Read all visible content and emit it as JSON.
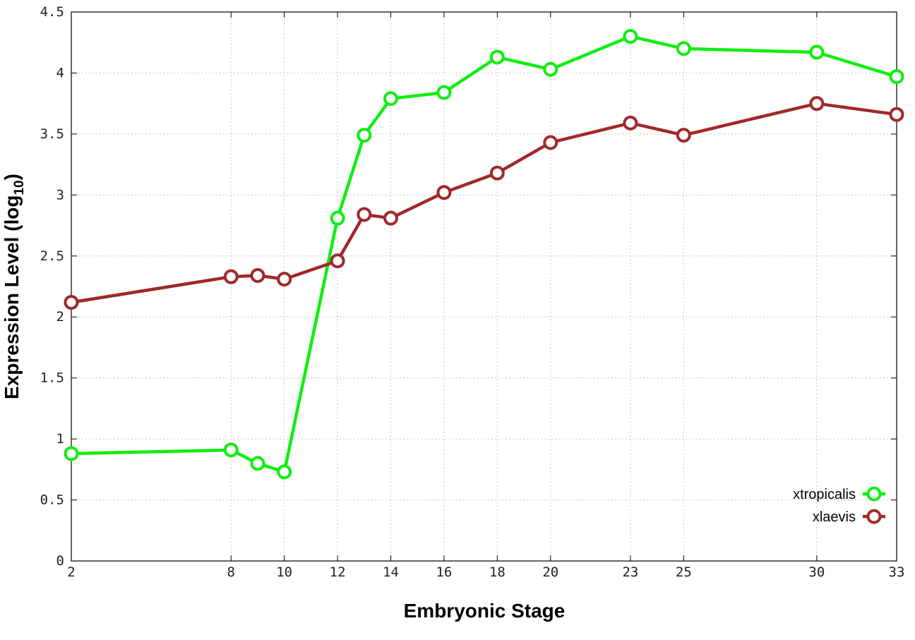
{
  "chart_data": {
    "type": "line",
    "xlabel": "Embryonic Stage",
    "ylabel": "Expression Level (log",
    "ylabel_sub": "10",
    "ylabel_close": ")",
    "x_ticks": [
      2,
      8,
      10,
      12,
      14,
      16,
      18,
      20,
      23,
      25,
      30,
      33
    ],
    "x_tick_labels": [
      "2",
      "8",
      "10",
      "12",
      "14",
      "16",
      "18",
      "20",
      "23",
      "25",
      "30",
      "33"
    ],
    "y_ticks": [
      0,
      0.5,
      1,
      1.5,
      2,
      2.5,
      3,
      3.5,
      4,
      4.5
    ],
    "y_tick_labels": [
      "0",
      "0.5",
      "1",
      "1.5",
      "2",
      "2.5",
      "3",
      "3.5",
      "4",
      "4.5"
    ],
    "xlim": [
      2,
      33
    ],
    "ylim": [
      0,
      4.5
    ],
    "grid": true,
    "legend_position": "bottom-right",
    "x": [
      2,
      8,
      9,
      10,
      12,
      13,
      14,
      16,
      18,
      20,
      23,
      25,
      30,
      33
    ],
    "series": [
      {
        "name": "xtropicalis",
        "color": "#11ee11",
        "values": [
          0.88,
          0.91,
          0.8,
          0.73,
          2.81,
          3.49,
          3.79,
          3.84,
          4.13,
          4.03,
          4.3,
          4.2,
          4.17,
          3.97
        ]
      },
      {
        "name": "xlaevis",
        "color": "#a0282a",
        "values": [
          2.12,
          2.33,
          2.34,
          2.31,
          2.46,
          2.84,
          2.81,
          3.02,
          3.18,
          3.43,
          3.59,
          3.49,
          3.75,
          3.66
        ]
      }
    ]
  }
}
